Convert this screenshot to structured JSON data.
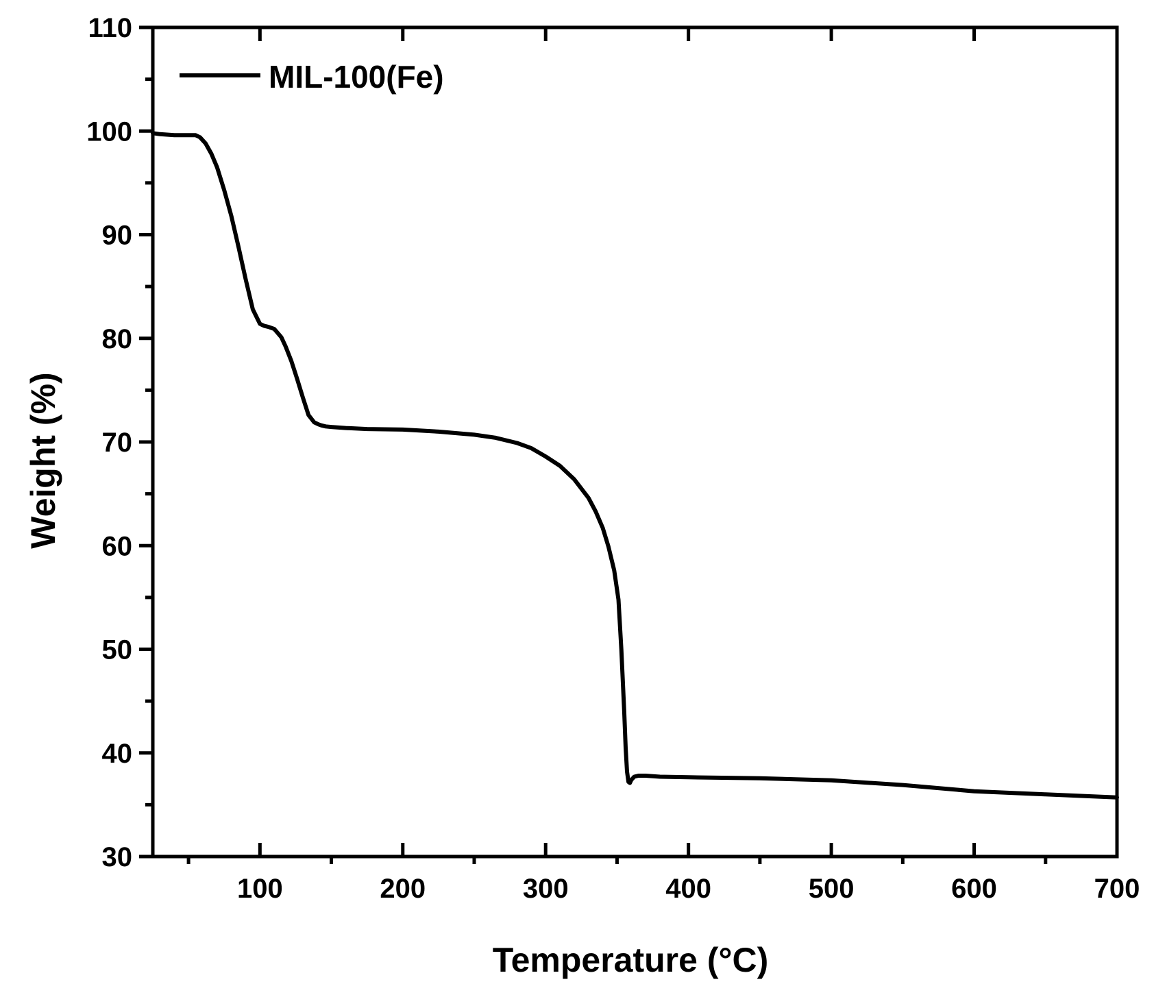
{
  "chart_data": {
    "type": "line",
    "xlabel": "Temperature (°C)",
    "ylabel": "Weight (%)",
    "xlim": [
      25,
      700
    ],
    "ylim": [
      30,
      110
    ],
    "x_ticks": [
      100,
      200,
      300,
      400,
      500,
      600,
      700
    ],
    "x_minor_ticks": [
      50,
      150,
      250,
      350,
      450,
      550,
      650
    ],
    "y_ticks": [
      30,
      40,
      50,
      60,
      70,
      80,
      90,
      100,
      110
    ],
    "y_minor_ticks": [
      35,
      45,
      55,
      65,
      75,
      85,
      95,
      105
    ],
    "grid": false,
    "legend_position": "top-left",
    "line_color": "#000000",
    "series": [
      {
        "name": "MIL-100(Fe)",
        "x": [
          25,
          30,
          40,
          50,
          55,
          58,
          62,
          66,
          70,
          75,
          80,
          85,
          90,
          95,
          100,
          103,
          106,
          110,
          115,
          118,
          122,
          126,
          130,
          134,
          138,
          141,
          143,
          146,
          150,
          160,
          175,
          200,
          225,
          250,
          265,
          280,
          290,
          300,
          310,
          320,
          330,
          335,
          340,
          344,
          348,
          351,
          353,
          355,
          356,
          357,
          358,
          359,
          360,
          362,
          365,
          370,
          380,
          400,
          450,
          500,
          550,
          600,
          650,
          700
        ],
        "y": [
          99.8,
          99.7,
          99.6,
          99.6,
          99.6,
          99.4,
          98.8,
          97.8,
          96.5,
          94.3,
          91.8,
          88.8,
          85.7,
          82.8,
          81.4,
          81.2,
          81.1,
          80.9,
          80.1,
          79.2,
          77.8,
          76.1,
          74.3,
          72.6,
          71.9,
          71.7,
          71.6,
          71.5,
          71.45,
          71.35,
          71.25,
          71.2,
          71.0,
          70.7,
          70.4,
          69.9,
          69.4,
          68.6,
          67.7,
          66.4,
          64.6,
          63.3,
          61.7,
          59.9,
          57.6,
          54.8,
          50.0,
          44.0,
          40.5,
          38.2,
          37.2,
          37.1,
          37.4,
          37.7,
          37.8,
          37.8,
          37.7,
          37.65,
          37.55,
          37.35,
          36.9,
          36.3,
          36.0,
          35.7
        ]
      }
    ]
  }
}
